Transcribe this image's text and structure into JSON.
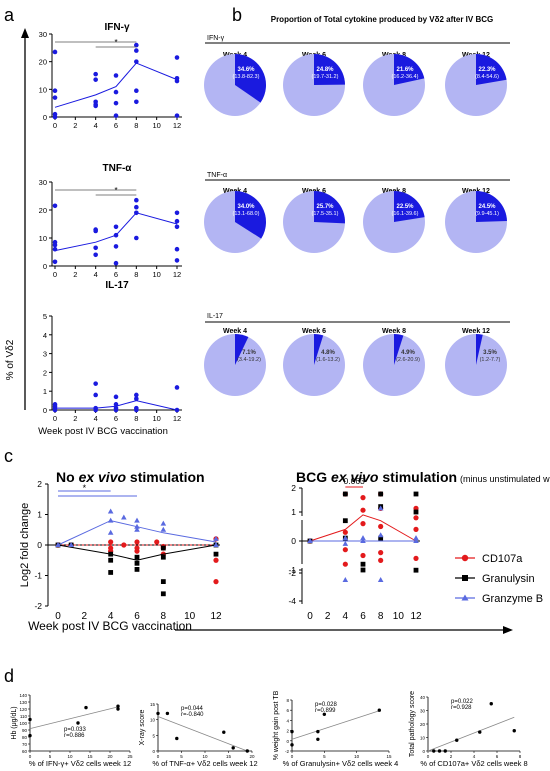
{
  "panel_letters": [
    "a",
    "b",
    "c",
    "d"
  ],
  "panel_a": {
    "ylabel": "% of Vδ2",
    "xlabel": "Week post IV BCG vaccination",
    "sig_marker": "*"
  },
  "panel_b": {
    "title": "Proportion of Total cytokine produced by Vδ2 after IV BCG"
  },
  "panel_c": {
    "title_left_1": "No ",
    "title_left_2": "ex vivo",
    "title_left_3": " stimulation",
    "title_right_1": "BCG ",
    "title_right_2": "ex vivo",
    "title_right_3": " stimulation",
    "title_right_4": "(minus unstimulated wells)",
    "ylabel": "Log2 fold change",
    "xlabel": "Week post IV BCG vaccination",
    "sig_left": "*",
    "sig_right": "0.063",
    "legend": [
      "CD107a",
      "Granulysin",
      "Granzyme B"
    ]
  },
  "colors": {
    "blue": "#1a1adf",
    "light_blue": "#b3b5f3",
    "red": "#e31a1c",
    "black": "#000000",
    "gz": "#5a6ae0"
  },
  "chart_data": [
    {
      "type": "scatter",
      "title": "IFN-γ",
      "x_ticks": [
        0,
        2,
        4,
        6,
        8,
        10,
        12
      ],
      "ylim": [
        0,
        30
      ],
      "y_ticks": [
        0,
        10,
        20,
        30
      ],
      "points": [
        [
          0,
          23.5
        ],
        [
          0,
          9.5
        ],
        [
          0,
          7
        ],
        [
          0,
          1
        ],
        [
          0,
          0
        ],
        [
          4,
          15.5
        ],
        [
          4,
          13.5
        ],
        [
          4,
          5.5
        ],
        [
          4,
          4.5
        ],
        [
          4,
          4
        ],
        [
          6,
          15
        ],
        [
          6,
          9
        ],
        [
          6,
          5
        ],
        [
          6,
          0.5
        ],
        [
          8,
          26
        ],
        [
          8,
          24
        ],
        [
          8,
          20
        ],
        [
          8,
          9.5
        ],
        [
          8,
          5.5
        ],
        [
          12,
          21.5
        ],
        [
          12,
          14
        ],
        [
          12,
          13
        ],
        [
          12,
          0.5
        ]
      ],
      "mean_line": [
        [
          0,
          3.5
        ],
        [
          4,
          8
        ],
        [
          6,
          11
        ],
        [
          8,
          19.5
        ],
        [
          12,
          13.5
        ]
      ]
    },
    {
      "type": "scatter",
      "title": "TNF-α",
      "x_ticks": [
        0,
        2,
        4,
        6,
        8,
        10,
        12
      ],
      "ylim": [
        0,
        30
      ],
      "y_ticks": [
        0,
        10,
        20,
        30
      ],
      "points": [
        [
          0,
          21.5
        ],
        [
          0,
          8.5
        ],
        [
          0,
          7.5
        ],
        [
          0,
          6
        ],
        [
          0,
          1.5
        ],
        [
          4,
          13
        ],
        [
          4,
          12.5
        ],
        [
          4,
          6.5
        ],
        [
          4,
          4
        ],
        [
          6,
          14
        ],
        [
          6,
          11
        ],
        [
          6,
          7
        ],
        [
          6,
          1
        ],
        [
          8,
          23.5
        ],
        [
          8,
          21
        ],
        [
          8,
          19
        ],
        [
          8,
          10
        ],
        [
          12,
          19
        ],
        [
          12,
          16
        ],
        [
          12,
          14
        ],
        [
          12,
          6
        ],
        [
          12,
          2
        ]
      ],
      "mean_line": [
        [
          0,
          5.5
        ],
        [
          4,
          8.5
        ],
        [
          6,
          11
        ],
        [
          8,
          19
        ],
        [
          12,
          15
        ]
      ]
    },
    {
      "type": "scatter",
      "title": "IL-17",
      "x_ticks": [
        0,
        2,
        4,
        6,
        8,
        10,
        12
      ],
      "ylim": [
        0,
        5
      ],
      "y_ticks": [
        0,
        1,
        2,
        3,
        4,
        5
      ],
      "points": [
        [
          0,
          0.3
        ],
        [
          0,
          0.2
        ],
        [
          0,
          0.1
        ],
        [
          0,
          0
        ],
        [
          4,
          1.4
        ],
        [
          4,
          0.8
        ],
        [
          4,
          0.1
        ],
        [
          4,
          0
        ],
        [
          6,
          0.7
        ],
        [
          6,
          0.3
        ],
        [
          6,
          0.1
        ],
        [
          6,
          0
        ],
        [
          8,
          0.8
        ],
        [
          8,
          0.6
        ],
        [
          8,
          0.1
        ],
        [
          8,
          0
        ],
        [
          12,
          1.2
        ],
        [
          12,
          0
        ]
      ],
      "mean_line": [
        [
          0,
          0.1
        ],
        [
          4,
          0.1
        ],
        [
          6,
          0.2
        ],
        [
          8,
          0.5
        ],
        [
          12,
          0
        ]
      ]
    },
    {
      "type": "pie",
      "title": "IFN-γ",
      "weeks": [
        "Week 4",
        "Week 6",
        "Week 8",
        "Week 12"
      ],
      "values": [
        34.6,
        24.8,
        21.6,
        22.3
      ],
      "labels": [
        "34.6%",
        "24.8%",
        "21.6%",
        "22.3%"
      ],
      "ranges": [
        "(13.8-82.3)",
        "(19.7-31.2)",
        "(16.2-36.4)",
        "(8.4-54.6)"
      ]
    },
    {
      "type": "pie",
      "title": "TNF-α",
      "weeks": [
        "Week 4",
        "Week 6",
        "Week 8",
        "Week 12"
      ],
      "values": [
        34.0,
        25.7,
        22.5,
        24.5
      ],
      "labels": [
        "34.0%",
        "25.7%",
        "22.5%",
        "24.5%"
      ],
      "ranges": [
        "(13.1-68.0)",
        "(17.5-35.1)",
        "(16.1-39.6)",
        "(9.9-45.1)"
      ]
    },
    {
      "type": "pie",
      "title": "IL-17",
      "weeks": [
        "Week 4",
        "Week 6",
        "Week 8",
        "Week 12"
      ],
      "values": [
        7.1,
        4.8,
        4.9,
        3.5
      ],
      "labels": [
        "7.1%",
        "4.8%",
        "4.9%",
        "3.5%"
      ],
      "ranges": [
        "(3.4-19.2)",
        "(1.6-13.2)",
        "(2.6-20.9)",
        "(1.2-7.7)"
      ]
    },
    {
      "type": "scatter",
      "title": "No ex vivo stimulation",
      "ylim": [
        -2,
        2
      ],
      "y_ticks": [
        -2,
        -1,
        0,
        1,
        2
      ],
      "x_ticks": [
        0,
        2,
        4,
        6,
        8,
        10,
        12
      ],
      "series": [
        {
          "name": "CD107a",
          "points": [
            [
              0,
              0
            ],
            [
              0,
              0
            ],
            [
              1,
              0
            ],
            [
              4,
              0.1
            ],
            [
              4,
              -0.1
            ],
            [
              4,
              -0.2
            ],
            [
              5,
              0
            ],
            [
              6,
              -0.1
            ],
            [
              6,
              0.1
            ],
            [
              6,
              -0.2
            ],
            [
              7.5,
              0.1
            ],
            [
              8,
              -0.1
            ],
            [
              8,
              -0.3
            ],
            [
              8,
              -0.05
            ],
            [
              12,
              0.2
            ],
            [
              12,
              -0.5
            ],
            [
              12,
              -1.2
            ]
          ],
          "mean_line": [
            [
              0,
              0
            ],
            [
              4,
              0
            ],
            [
              6,
              0
            ],
            [
              8,
              0
            ],
            [
              12,
              0
            ]
          ]
        },
        {
          "name": "Granulysin",
          "points": [
            [
              0,
              0
            ],
            [
              1,
              0
            ],
            [
              4,
              -0.9
            ],
            [
              4,
              -0.5
            ],
            [
              4,
              -0.3
            ],
            [
              6,
              -0.8
            ],
            [
              6,
              -0.6
            ],
            [
              6,
              -0.4
            ],
            [
              8,
              -0.1
            ],
            [
              8,
              -0.4
            ],
            [
              8,
              -1.2
            ],
            [
              8,
              -1.6
            ],
            [
              12,
              0
            ],
            [
              12,
              -0.3
            ]
          ],
          "mean_line": [
            [
              0,
              0
            ],
            [
              4,
              -0.3
            ],
            [
              6,
              -0.5
            ],
            [
              8,
              -0.3
            ],
            [
              12,
              0
            ]
          ]
        },
        {
          "name": "Granzyme B",
          "points": [
            [
              0,
              0
            ],
            [
              1,
              0
            ],
            [
              4,
              1.1
            ],
            [
              4,
              0.8
            ],
            [
              4,
              0.4
            ],
            [
              5,
              0.9
            ],
            [
              6,
              0.6
            ],
            [
              6,
              0.8
            ],
            [
              6,
              0.5
            ],
            [
              8,
              0.7
            ],
            [
              8,
              0.5
            ],
            [
              12,
              0.2
            ],
            [
              12,
              0
            ]
          ],
          "mean_line": [
            [
              0,
              0
            ],
            [
              4,
              0.8
            ],
            [
              6,
              0.6
            ],
            [
              8,
              0.4
            ],
            [
              12,
              0.1
            ]
          ]
        }
      ]
    },
    {
      "type": "scatter",
      "title": "BCG ex vivo stimulation",
      "ylim": [
        -4,
        2
      ],
      "y_ticks": [
        -4,
        -2,
        -1,
        0,
        1,
        2
      ],
      "x_ticks": [
        0,
        2,
        4,
        6,
        8,
        10,
        12
      ],
      "series": [
        {
          "name": "CD107a",
          "points": [
            [
              0,
              0
            ],
            [
              4,
              2
            ],
            [
              4,
              0.3
            ],
            [
              4,
              -0.3
            ],
            [
              4,
              -0.8
            ],
            [
              6,
              1.8
            ],
            [
              6,
              1.1
            ],
            [
              6,
              0.6
            ],
            [
              6,
              -0.5
            ],
            [
              8,
              2
            ],
            [
              8,
              1.2
            ],
            [
              8,
              0.5
            ],
            [
              8,
              -0.4
            ],
            [
              8,
              -1.1
            ],
            [
              12,
              1.2
            ],
            [
              12,
              0.8
            ],
            [
              12,
              0.4
            ],
            [
              12,
              -0.6
            ]
          ],
          "mean_line": [
            [
              0,
              0
            ],
            [
              4,
              0.4
            ],
            [
              6,
              0.9
            ],
            [
              8,
              0.7
            ],
            [
              12,
              0
            ]
          ]
        },
        {
          "name": "Granulysin",
          "points": [
            [
              0,
              0
            ],
            [
              4,
              2
            ],
            [
              4,
              0.7
            ],
            [
              4,
              0.1
            ],
            [
              6,
              -0.8
            ],
            [
              6,
              -1
            ],
            [
              8,
              2
            ],
            [
              8,
              1.3
            ],
            [
              8,
              0.1
            ],
            [
              12,
              2
            ],
            [
              12,
              1
            ],
            [
              12,
              -1.8
            ]
          ],
          "mean_line": [
            [
              0,
              0
            ],
            [
              4,
              0
            ],
            [
              6,
              0
            ],
            [
              8,
              0
            ],
            [
              12,
              0
            ]
          ]
        },
        {
          "name": "Granzyme B",
          "points": [
            [
              0,
              0
            ],
            [
              4,
              0.1
            ],
            [
              4,
              -0.1
            ],
            [
              4,
              -2.5
            ],
            [
              6,
              0.1
            ],
            [
              6,
              0
            ],
            [
              8,
              1.2
            ],
            [
              8,
              0.2
            ],
            [
              8,
              -2.5
            ],
            [
              12,
              0.1
            ],
            [
              12,
              0
            ]
          ],
          "mean_line": [
            [
              0,
              0
            ],
            [
              4,
              0
            ],
            [
              6,
              0
            ],
            [
              8,
              0
            ],
            [
              12,
              0
            ]
          ]
        }
      ]
    },
    {
      "type": "scatter",
      "xlabel": "% of IFN-γ+ Vδ2 cells week 12",
      "ylabel": "Hb (μg/dL)",
      "xlim": [
        0,
        25
      ],
      "x_ticks": [
        0,
        5,
        10,
        15,
        20,
        25
      ],
      "ylim": [
        60,
        140
      ],
      "y_ticks": [
        60,
        70,
        80,
        90,
        100,
        110,
        120,
        130,
        140
      ],
      "p": "p=0.033",
      "r": "r=0.886",
      "points": [
        [
          0,
          105
        ],
        [
          0,
          82
        ],
        [
          12,
          100
        ],
        [
          14,
          122
        ],
        [
          22,
          120
        ],
        [
          22,
          124
        ]
      ],
      "fit": [
        [
          0,
          92
        ],
        [
          22,
          123
        ]
      ]
    },
    {
      "type": "scatter",
      "xlabel": "% of TNF-α+ Vδ2 cells week 12",
      "ylabel": "X-ray score",
      "xlim": [
        0,
        20
      ],
      "x_ticks": [
        0,
        5,
        10,
        15,
        20
      ],
      "ylim": [
        0,
        15
      ],
      "y_ticks": [
        0,
        5,
        10,
        15
      ],
      "p": "p=0.044",
      "r": "r=-0.840",
      "points": [
        [
          0,
          12
        ],
        [
          2,
          12
        ],
        [
          4,
          4
        ],
        [
          14,
          6
        ],
        [
          16,
          1
        ],
        [
          19,
          0
        ]
      ],
      "fit": [
        [
          0,
          11
        ],
        [
          19,
          0
        ]
      ]
    },
    {
      "type": "scatter",
      "xlabel": "% of Granulysin+ Vδ2 cells week 4",
      "ylabel": "% weight gain post TB",
      "xlim": [
        0,
        15
      ],
      "x_ticks": [
        0,
        5,
        10,
        15
      ],
      "ylim": [
        -2,
        8
      ],
      "y_ticks": [
        -2,
        0,
        2,
        4,
        6,
        8
      ],
      "p": "p=0.028",
      "r": "r=0.899",
      "points": [
        [
          0,
          1.8
        ],
        [
          0,
          -0.8
        ],
        [
          4,
          0.3
        ],
        [
          4,
          1.8
        ],
        [
          5,
          5.2
        ],
        [
          13.5,
          6
        ]
      ],
      "fit": [
        [
          0,
          0.3
        ],
        [
          13.5,
          5.9
        ]
      ]
    },
    {
      "type": "scatter",
      "xlabel": "% of CD107a+ Vδ2 cells week 8",
      "ylabel": "Total pathology score",
      "xlim": [
        0,
        8
      ],
      "x_ticks": [
        0,
        2,
        4,
        6,
        8
      ],
      "ylim": [
        0,
        40
      ],
      "y_ticks": [
        0,
        10,
        20,
        30,
        40
      ],
      "p": "p=0.022",
      "r": "r=0.928",
      "points": [
        [
          0.5,
          0
        ],
        [
          1,
          0
        ],
        [
          1.5,
          0
        ],
        [
          2.5,
          8
        ],
        [
          4.5,
          14
        ],
        [
          5.5,
          35
        ],
        [
          7.5,
          15
        ]
      ],
      "fit": [
        [
          0,
          0
        ],
        [
          7.5,
          25
        ]
      ]
    }
  ]
}
